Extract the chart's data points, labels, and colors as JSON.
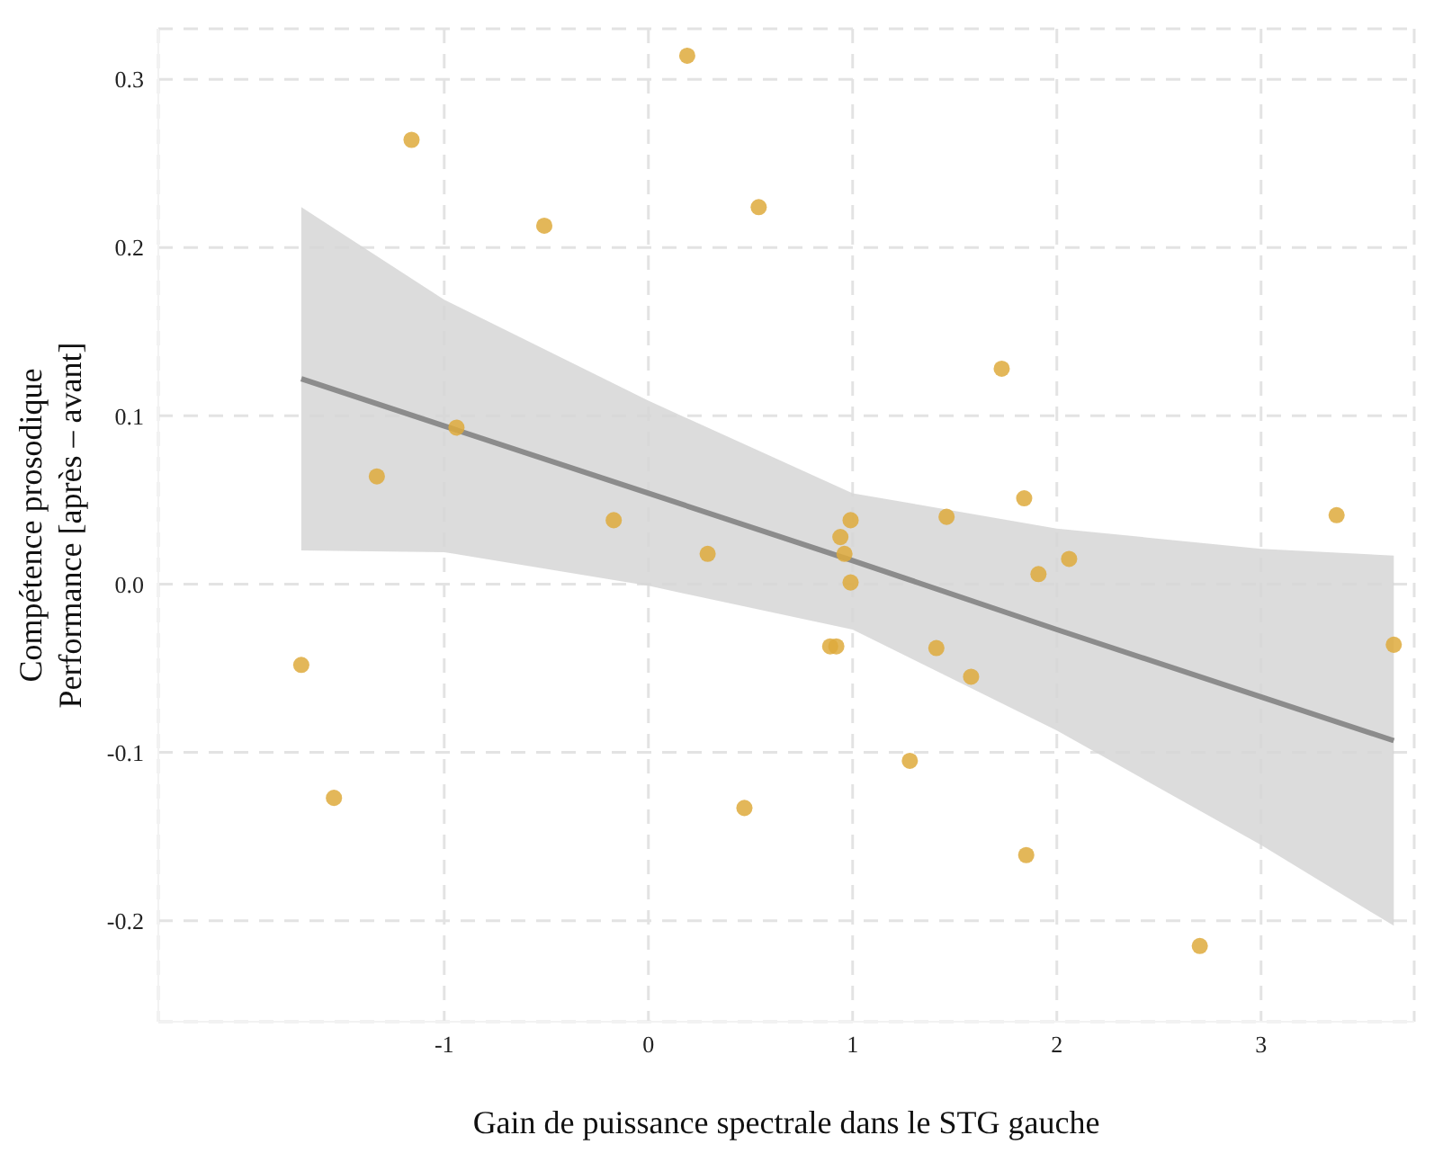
{
  "chart_data": {
    "type": "scatter",
    "xlabel": "Gain de puissance spectrale dans le STG gauche",
    "ylabel": "Compétence prosodique\nPerformance [après – avant]",
    "xlim": [
      -2.4,
      3.75
    ],
    "ylim": [
      -0.26,
      0.33
    ],
    "xticks": [
      -1,
      0,
      1,
      2,
      3
    ],
    "yticks": [
      -0.2,
      -0.1,
      {
        "value": 0,
        "label": "0.0"
      },
      0.1,
      0.2,
      0.3
    ],
    "grid": true,
    "legend": false,
    "series": [
      {
        "color": "#deaa3c",
        "marker": "circle",
        "x": [
          -1.7,
          -1.54,
          -1.33,
          -1.16,
          -0.94,
          -0.51,
          -0.17,
          0.19,
          0.29,
          0.54,
          0.47,
          0.89,
          0.92,
          0.94,
          0.96,
          0.99,
          0.99,
          1.28,
          1.41,
          1.46,
          1.58,
          1.73,
          1.84,
          1.85,
          1.91,
          2.06,
          2.7,
          3.37,
          3.65
        ],
        "values": [
          -0.048,
          -0.127,
          0.064,
          0.264,
          0.093,
          0.213,
          0.038,
          0.314,
          0.018,
          0.224,
          -0.133,
          -0.037,
          -0.037,
          0.028,
          0.018,
          0.038,
          0.001,
          -0.105,
          -0.038,
          0.04,
          -0.055,
          0.128,
          0.051,
          -0.161,
          0.006,
          0.015,
          -0.215,
          0.041,
          -0.036
        ]
      },
      {
        "type": "line",
        "color": "#8c8c8c",
        "marker": "none",
        "line_style": "solid",
        "x": [
          -1.7,
          -1,
          0,
          1,
          2,
          3,
          3.65
        ],
        "values": [
          0.122,
          0.094,
          0.054,
          0.014,
          -0.027,
          -0.067,
          -0.093
        ],
        "lower": [
          0.02,
          0.019,
          -0.001,
          -0.027,
          -0.087,
          -0.155,
          -0.203
        ],
        "upper": [
          0.224,
          0.169,
          0.109,
          0.054,
          0.033,
          0.021,
          0.017
        ]
      }
    ]
  }
}
